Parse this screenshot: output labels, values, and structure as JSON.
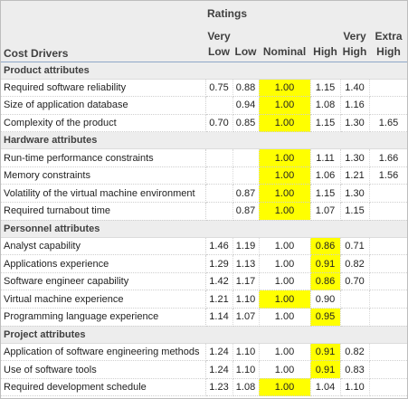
{
  "header": {
    "ratings_title": "Ratings",
    "cost_drivers_label": "Cost Drivers",
    "columns": [
      [
        "Very",
        "Low"
      ],
      [
        "",
        "Low"
      ],
      [
        "",
        "Nominal"
      ],
      [
        "",
        "High"
      ],
      [
        "Very",
        "High"
      ],
      [
        "Extra",
        "High"
      ]
    ]
  },
  "highlight_color": "#ffff00",
  "sections": [
    {
      "title": "Product attributes",
      "rows": [
        {
          "name": "Required software reliability",
          "values": [
            "0.75",
            "0.88",
            "1.00",
            "1.15",
            "1.40",
            ""
          ],
          "highlight": 2
        },
        {
          "name": "Size of application database",
          "values": [
            "",
            "0.94",
            "1.00",
            "1.08",
            "1.16",
            ""
          ],
          "highlight": 2
        },
        {
          "name": "Complexity of the product",
          "values": [
            "0.70",
            "0.85",
            "1.00",
            "1.15",
            "1.30",
            "1.65"
          ],
          "highlight": 2
        }
      ]
    },
    {
      "title": "Hardware attributes",
      "rows": [
        {
          "name": "Run-time performance constraints",
          "values": [
            "",
            "",
            "1.00",
            "1.11",
            "1.30",
            "1.66"
          ],
          "highlight": 2
        },
        {
          "name": "Memory constraints",
          "values": [
            "",
            "",
            "1.00",
            "1.06",
            "1.21",
            "1.56"
          ],
          "highlight": 2
        },
        {
          "name": "Volatility of the virtual machine environment",
          "values": [
            "",
            "0.87",
            "1.00",
            "1.15",
            "1.30",
            ""
          ],
          "highlight": 2
        },
        {
          "name": "Required turnabout time",
          "values": [
            "",
            "0.87",
            "1.00",
            "1.07",
            "1.15",
            ""
          ],
          "highlight": 2
        }
      ]
    },
    {
      "title": "Personnel attributes",
      "rows": [
        {
          "name": "Analyst capability",
          "values": [
            "1.46",
            "1.19",
            "1.00",
            "0.86",
            "0.71",
            ""
          ],
          "highlight": 3
        },
        {
          "name": "Applications experience",
          "values": [
            "1.29",
            "1.13",
            "1.00",
            "0.91",
            "0.82",
            ""
          ],
          "highlight": 3
        },
        {
          "name": "Software engineer capability",
          "values": [
            "1.42",
            "1.17",
            "1.00",
            "0.86",
            "0.70",
            ""
          ],
          "highlight": 3
        },
        {
          "name": "Virtual machine experience",
          "values": [
            "1.21",
            "1.10",
            "1.00",
            "0.90",
            "",
            ""
          ],
          "highlight": 2
        },
        {
          "name": "Programming language experience",
          "values": [
            "1.14",
            "1.07",
            "1.00",
            "0.95",
            "",
            ""
          ],
          "highlight": 3
        }
      ]
    },
    {
      "title": "Project attributes",
      "rows": [
        {
          "name": "Application of software engineering methods",
          "values": [
            "1.24",
            "1.10",
            "1.00",
            "0.91",
            "0.82",
            ""
          ],
          "highlight": 3
        },
        {
          "name": "Use of software tools",
          "values": [
            "1.24",
            "1.10",
            "1.00",
            "0.91",
            "0.83",
            ""
          ],
          "highlight": 3
        },
        {
          "name": "Required development schedule",
          "values": [
            "1.23",
            "1.08",
            "1.00",
            "1.04",
            "1.10",
            ""
          ],
          "highlight": 2
        }
      ]
    }
  ]
}
